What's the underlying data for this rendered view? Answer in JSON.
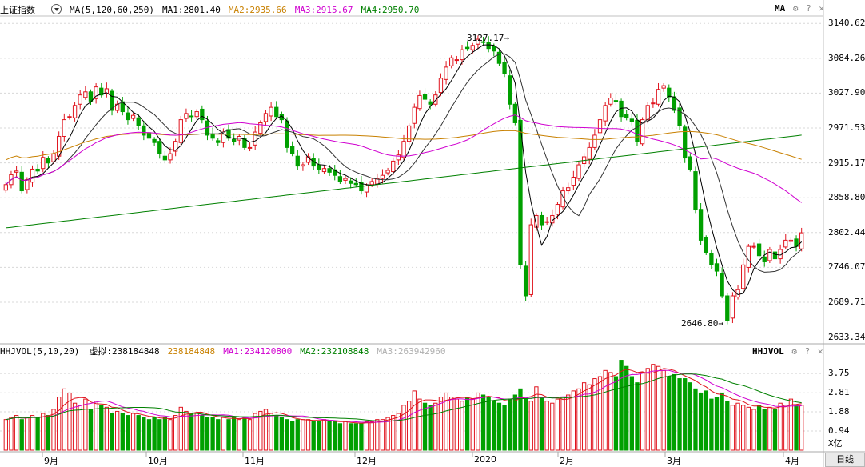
{
  "main_header": {
    "title": "上证指数",
    "ma_setting": "MA(5,120,60,250)",
    "ma1": "MA1:2801.40",
    "ma2": "MA2:2935.66",
    "ma3": "MA3:2915.67",
    "ma4": "MA4:2950.70",
    "right_label": "MA"
  },
  "vol_header": {
    "setting": "HHJVOL(5,10,20)",
    "virtual_label": "虚拟:238184848",
    "v": "238184848",
    "ma1": "MA1:234120800",
    "ma2": "MA2:232108848",
    "ma3": "MA3:263942960",
    "right_label": "HHJVOL"
  },
  "colors": {
    "up": "#e0141e",
    "down": "#00a000",
    "ma1": "#000000",
    "ma2": "#c88000",
    "ma3": "#d000d0",
    "ma4": "#008000"
  },
  "controls": {
    "gear": "gear-icon",
    "help": "?",
    "close": "close-icon"
  },
  "price_axis": [
    "3140.62",
    "3084.26",
    "3027.90",
    "2971.53",
    "2915.17",
    "2858.80",
    "2802.44",
    "2746.07",
    "2689.71",
    "2633.34"
  ],
  "vol_axis": [
    "3.75",
    "2.81",
    "1.88",
    "0.94",
    "X亿"
  ],
  "x_axis": [
    "9月",
    "10月",
    "11月",
    "12月",
    "2020",
    "2月",
    "3月",
    "4月"
  ],
  "annotations": {
    "high": "3127.17→",
    "low": "2646.80→"
  },
  "period_tab": "日线",
  "chart_data": {
    "type": "candlestick",
    "closes": [
      2880,
      2896,
      2902,
      2870,
      2888,
      2905,
      2902,
      2924,
      2915,
      2930,
      2958,
      2985,
      2990,
      3008,
      3025,
      3030,
      3015,
      3038,
      3025,
      3035,
      3000,
      3010,
      2998,
      2985,
      2992,
      2975,
      2960,
      2955,
      2948,
      2930,
      2920,
      2930,
      2950,
      2985,
      2995,
      2990,
      2998,
      2985,
      2960,
      2955,
      2948,
      2965,
      2955,
      2950,
      2958,
      2940,
      2940,
      2965,
      2980,
      2995,
      3005,
      2990,
      2985,
      2940,
      2930,
      2910,
      2912,
      2925,
      2910,
      2905,
      2906,
      2900,
      2895,
      2885,
      2890,
      2882,
      2880,
      2870,
      2878,
      2885,
      2890,
      2895,
      2903,
      2918,
      2928,
      2950,
      2975,
      3005,
      3024,
      3018,
      3010,
      3025,
      3052,
      3070,
      3085,
      3082,
      3098,
      3100,
      3105,
      3115,
      3110,
      3100,
      3096,
      3076,
      3060,
      3010,
      2980,
      2750,
      2700,
      2815,
      2830,
      2815,
      2820,
      2830,
      2848,
      2870,
      2875,
      2892,
      2912,
      2925,
      2940,
      2960,
      2985,
      3008,
      3020,
      3015,
      2990,
      2988,
      2982,
      2950,
      2985,
      3008,
      3012,
      3034,
      3040,
      3022,
      3000,
      2975,
      2923,
      2905,
      2840,
      2790,
      2770,
      2750,
      2740,
      2700,
      2660,
      2700,
      2710,
      2750,
      2780,
      2780,
      2765,
      2755,
      2775,
      2760,
      2775,
      2790,
      2790,
      2780,
      2802
    ],
    "volumes": [
      1.5,
      1.6,
      1.7,
      1.5,
      1.6,
      1.7,
      1.6,
      1.8,
      1.7,
      2.0,
      2.6,
      3.0,
      2.8,
      2.3,
      2.2,
      2.5,
      2.0,
      2.4,
      2.2,
      2.1,
      1.8,
      1.9,
      1.8,
      1.7,
      1.8,
      1.7,
      1.6,
      1.5,
      1.6,
      1.5,
      1.6,
      1.5,
      1.7,
      2.1,
      1.9,
      1.8,
      1.8,
      1.7,
      1.6,
      1.6,
      1.5,
      1.6,
      1.5,
      1.6,
      1.5,
      1.6,
      1.5,
      1.8,
      1.9,
      2.0,
      1.8,
      1.7,
      1.6,
      1.5,
      1.4,
      1.5,
      1.5,
      1.5,
      1.4,
      1.4,
      1.5,
      1.4,
      1.4,
      1.3,
      1.4,
      1.3,
      1.3,
      1.3,
      1.4,
      1.4,
      1.5,
      1.5,
      1.6,
      1.7,
      1.8,
      2.2,
      2.4,
      2.9,
      2.5,
      2.3,
      2.2,
      2.3,
      2.6,
      2.8,
      2.6,
      2.5,
      2.4,
      2.6,
      2.5,
      2.8,
      2.7,
      2.6,
      2.4,
      2.3,
      2.2,
      2.5,
      2.7,
      3.0,
      2.5,
      2.4,
      3.1,
      2.6,
      2.4,
      2.3,
      2.5,
      2.6,
      2.7,
      2.9,
      3.0,
      3.3,
      3.2,
      3.5,
      3.6,
      3.9,
      3.8,
      3.6,
      4.4,
      4.1,
      3.6,
      3.3,
      3.8,
      4.0,
      4.2,
      4.1,
      3.9,
      3.6,
      3.7,
      3.5,
      3.5,
      3.3,
      3.0,
      2.8,
      2.9,
      2.5,
      2.6,
      2.8,
      2.4,
      2.2,
      2.3,
      2.2,
      2.1,
      2.0,
      2.2,
      2.0,
      2.1,
      2.0,
      2.3,
      2.2,
      2.5,
      2.2,
      2.2
    ]
  }
}
